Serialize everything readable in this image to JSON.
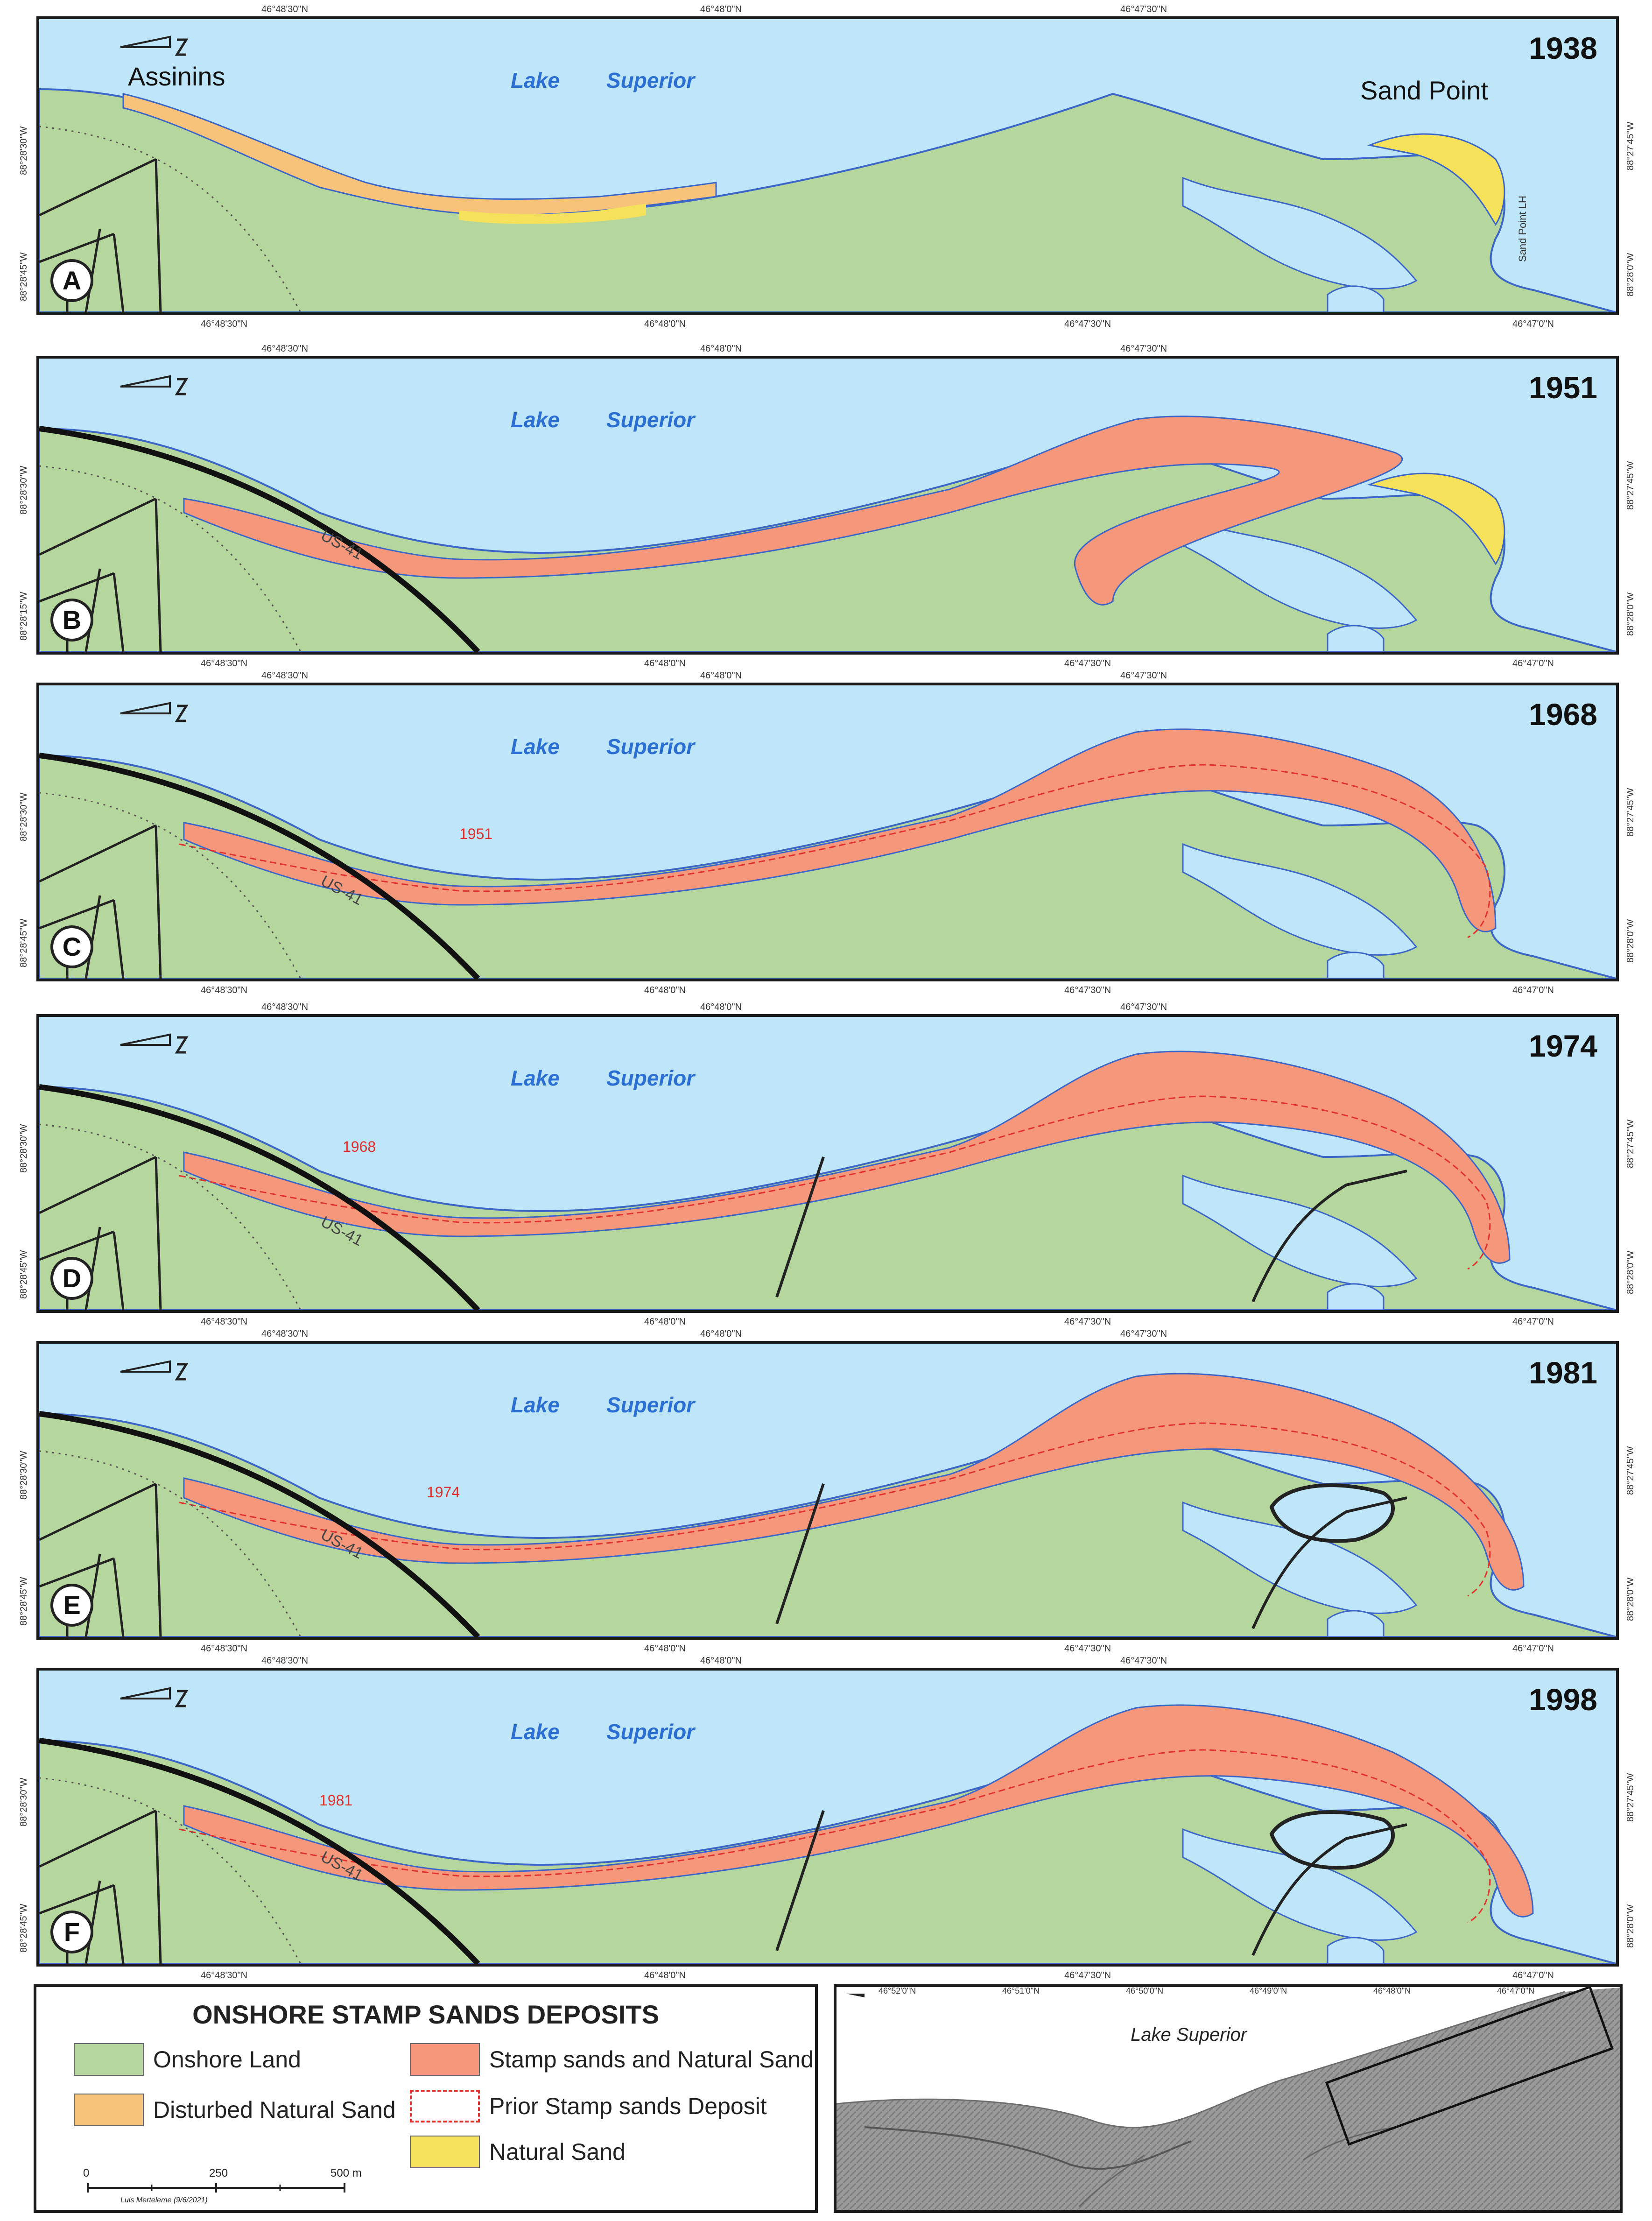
{
  "panels": [
    {
      "letter": "A",
      "year": "1938",
      "lake": [
        "Lake",
        "Superior"
      ],
      "places": [
        "Assinins",
        "Sand Point"
      ],
      "road_label": "",
      "annotation": "Sand Point LH",
      "top_coords": [
        "46°48'30\"N",
        "46°48'0\"N",
        "46°47'30\"N"
      ],
      "bottom_coords": [
        "46°48'30\"N",
        "46°48'0\"N",
        "46°47'30\"N",
        "46°47'0\"N"
      ],
      "left_coords": [
        "88°28'30\"W",
        "88°28'45\"W"
      ],
      "right_coords": [
        "88°27'45\"W",
        "88°28'0\"W"
      ]
    },
    {
      "letter": "B",
      "year": "1951",
      "lake": [
        "Lake",
        "Superior"
      ],
      "road_label": "US-41",
      "prior_label": "",
      "top_coords": [
        "46°48'30\"N",
        "46°48'0\"N",
        "46°47'30\"N"
      ],
      "bottom_coords": [
        "46°48'30\"N",
        "46°48'0\"N",
        "46°47'30\"N",
        "46°47'0\"N"
      ],
      "left_coords": [
        "88°28'30\"W",
        "88°28'15\"W"
      ],
      "right_coords": [
        "88°27'45\"W",
        "88°28'0\"W"
      ]
    },
    {
      "letter": "C",
      "year": "1968",
      "lake": [
        "Lake",
        "Superior"
      ],
      "road_label": "US-41",
      "prior_label": "1951",
      "top_coords": [
        "46°48'30\"N",
        "46°48'0\"N",
        "46°47'30\"N"
      ],
      "bottom_coords": [
        "46°48'30\"N",
        "46°48'0\"N",
        "46°47'30\"N",
        "46°47'0\"N"
      ],
      "left_coords": [
        "88°28'30\"W",
        "88°28'45\"W"
      ],
      "right_coords": [
        "88°27'45\"W",
        "88°28'0\"W"
      ]
    },
    {
      "letter": "D",
      "year": "1974",
      "lake": [
        "Lake",
        "Superior"
      ],
      "road_label": "US-41",
      "prior_label": "1968",
      "top_coords": [
        "46°48'30\"N",
        "46°48'0\"N",
        "46°47'30\"N"
      ],
      "bottom_coords": [
        "46°48'30\"N",
        "46°48'0\"N",
        "46°47'30\"N",
        "46°47'0\"N"
      ],
      "left_coords": [
        "88°28'30\"W",
        "88°28'45\"W"
      ],
      "right_coords": [
        "88°27'45\"W",
        "88°28'0\"W"
      ]
    },
    {
      "letter": "E",
      "year": "1981",
      "lake": [
        "Lake",
        "Superior"
      ],
      "road_label": "US-41",
      "prior_label": "1974",
      "top_coords": [
        "46°48'30\"N",
        "46°48'0\"N",
        "46°47'30\"N"
      ],
      "bottom_coords": [
        "46°48'30\"N",
        "46°48'0\"N",
        "46°47'30\"N",
        "46°47'0\"N"
      ],
      "left_coords": [
        "88°28'30\"W",
        "88°28'45\"W"
      ],
      "right_coords": [
        "88°27'45\"W",
        "88°28'0\"W"
      ]
    },
    {
      "letter": "F",
      "year": "1998",
      "lake": [
        "Lake",
        "Superior"
      ],
      "road_label": "US-41",
      "prior_label": "1981",
      "top_coords": [
        "46°48'30\"N",
        "46°48'0\"N",
        "46°47'30\"N"
      ],
      "bottom_coords": [
        "46°48'30\"N",
        "46°48'0\"N",
        "46°47'30\"N",
        "46°47'0\"N"
      ],
      "left_coords": [
        "88°28'30\"W",
        "88°28'45\"W"
      ],
      "right_coords": [
        "88°27'45\"W",
        "88°28'0\"W"
      ]
    }
  ],
  "legend": {
    "title": "ONSHORE STAMP SANDS DEPOSITS",
    "items": [
      {
        "label": "Onshore Land",
        "color": "#b5d69c"
      },
      {
        "label": "Stamp sands and Natural Sand",
        "color": "#f4977b"
      },
      {
        "label": "Disturbed Natural Sand",
        "color": "#f7c27a"
      },
      {
        "label": "Prior Stamp sands Deposit",
        "color": "#e0312f"
      },
      {
        "label": "Natural Sand",
        "color": "#f6e25a"
      }
    ],
    "scale": {
      "ticks": [
        "0",
        "250",
        "500 m"
      ],
      "credit": "Luis Merteleme (9/6/2021)"
    }
  },
  "inset": {
    "lake": "Lake Superior",
    "top_coords": [
      "46°52'0\"N",
      "46°51'0\"N",
      "46°50'0\"N",
      "46°49'0\"N",
      "46°48'0\"N",
      "46°47'0\"N"
    ]
  },
  "colors": {
    "water": "#bfe6f8",
    "land": "#b5d69c",
    "stamp": "#f4977b",
    "disturbed": "#f7c27a",
    "natural": "#f6e25a",
    "prior": "#e0312f",
    "shore": "#3b66c8"
  }
}
